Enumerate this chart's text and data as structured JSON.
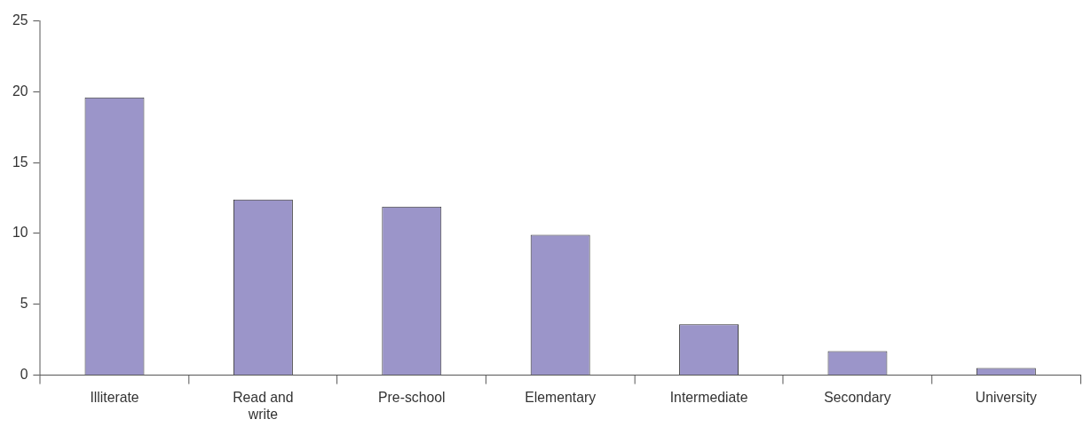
{
  "chart_data": {
    "type": "bar",
    "categories": [
      "Illiterate",
      "Read and write",
      "Pre-school",
      "Elementary",
      "Intermediate",
      "Secondary",
      "University"
    ],
    "values": [
      19.6,
      12.4,
      11.9,
      9.9,
      3.6,
      1.7,
      0.5
    ],
    "color": "#9b95c9",
    "ylim": [
      0,
      25
    ],
    "yticks": [
      0,
      5,
      10,
      15,
      20,
      25
    ],
    "grid": false,
    "legend": false
  }
}
